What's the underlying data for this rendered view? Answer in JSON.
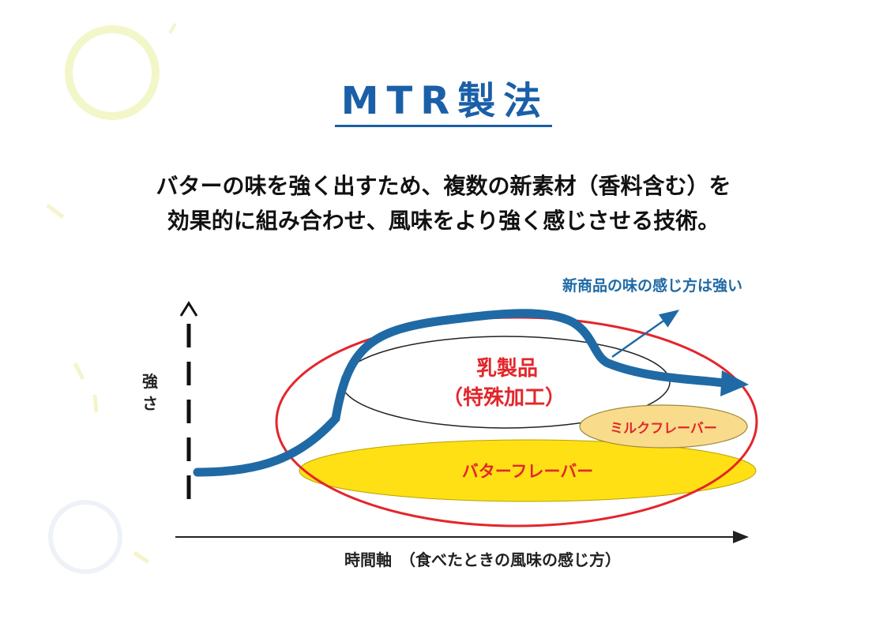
{
  "title": "MTR製法",
  "description": {
    "line1": "バターの味を強く出すため、複数の新素材（香料含む）を",
    "line2": "効果的に組み合わせ、風味をより強く感じさせる技術。"
  },
  "diagram": {
    "y_axis_label": "強さ",
    "x_axis_label": "時間軸　（食べたときの風味の感じ方）",
    "annotation": "新商品の味の感じ方は強い",
    "dairy_label_line1": "乳製品",
    "dairy_label_line2": "（特殊加工）",
    "milk_flavor_label": "ミルクフレーバー",
    "butter_flavor_label": "バターフレーバー"
  },
  "colors": {
    "title_blue": "#1a5fa8",
    "curve_blue": "#1f6aa5",
    "red_outline": "#e3262b",
    "butter_yellow": "#ffe014",
    "milk_beige": "#f8dc8c",
    "label_red": "#e3262b",
    "annotation_blue": "#1f6aa5"
  }
}
